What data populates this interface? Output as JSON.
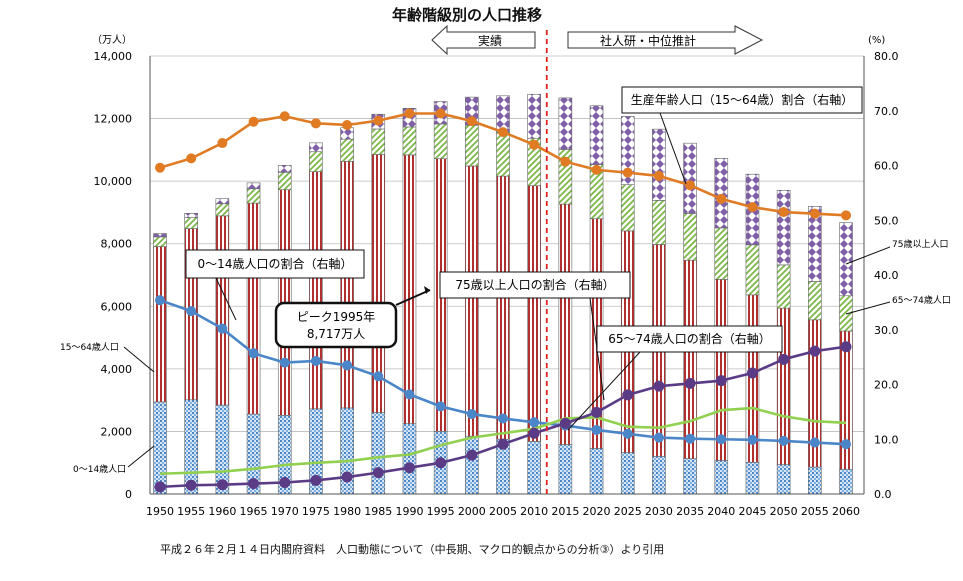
{
  "chart_data": {
    "type": "bar",
    "title": "年齢階級別の人口推移",
    "left_unit": "（万人）",
    "right_unit": "(%)",
    "left_axis": {
      "min": 0,
      "max": 14000,
      "ticks": [
        "0",
        "2,000",
        "4,000",
        "6,000",
        "8,000",
        "10,000",
        "12,000",
        "14,000"
      ]
    },
    "right_axis": {
      "min": 0,
      "max": 80,
      "ticks": [
        "0.0",
        "10.0",
        "20.0",
        "30.0",
        "40.0",
        "50.0",
        "60.0",
        "70.0",
        "80.0"
      ]
    },
    "categories": [
      "1950",
      "1955",
      "1960",
      "1965",
      "1970",
      "1975",
      "1980",
      "1985",
      "1990",
      "1995",
      "2000",
      "2005",
      "2010",
      "2015",
      "2020",
      "2025",
      "2030",
      "2035",
      "2040",
      "2045",
      "2050",
      "2055",
      "2060"
    ],
    "bar_series": [
      {
        "name": "0〜14歳人口",
        "color": "#4a86c8",
        "values": [
          2943,
          3012,
          2843,
          2553,
          2515,
          2722,
          2751,
          2603,
          2249,
          2001,
          1847,
          1752,
          1680,
          1583,
          1457,
          1324,
          1204,
          1129,
          1073,
          1012,
          939,
          861,
          791
        ]
      },
      {
        "name": "15〜64歳人口",
        "color": "#b03030",
        "values": [
          4966,
          5473,
          6047,
          6744,
          7212,
          7581,
          7883,
          8251,
          8590,
          8717,
          8638,
          8409,
          8173,
          7682,
          7341,
          7085,
          6773,
          6343,
          5787,
          5353,
          5001,
          4706,
          4418
        ]
      },
      {
        "name": "65〜74歳人口",
        "color": "#7ab648",
        "values": [
          309,
          347,
          387,
          459,
          555,
          637,
          707,
          814,
          893,
          1109,
          1301,
          1407,
          1517,
          1749,
          1733,
          1479,
          1407,
          1497,
          1645,
          1600,
          1383,
          1225,
          1128
        ]
      },
      {
        "name": "75歳以上人口",
        "color": "#7f5fa8",
        "values": [
          107,
          139,
          163,
          189,
          224,
          284,
          366,
          471,
          597,
          717,
          900,
          1160,
          1407,
          1646,
          1879,
          2179,
          2278,
          2245,
          2223,
          2257,
          2385,
          2401,
          2336
        ]
      }
    ],
    "line_series": [
      {
        "name": "生産年齢人口（15〜64歳）割合（右軸）",
        "color": "#e07b24",
        "values": [
          59.6,
          61.3,
          64.1,
          68.0,
          69.0,
          67.7,
          67.4,
          68.2,
          69.5,
          69.5,
          68.1,
          66.1,
          63.8,
          60.7,
          59.2,
          58.7,
          58.1,
          56.4,
          53.9,
          52.4,
          51.5,
          51.2,
          50.9
        ]
      },
      {
        "name": "0〜14歳人口の割合（右軸）",
        "color": "#4a86c8",
        "values": [
          35.4,
          33.4,
          30.2,
          25.7,
          24.0,
          24.3,
          23.5,
          21.5,
          18.2,
          16.0,
          14.6,
          13.8,
          13.1,
          12.5,
          11.7,
          11.0,
          10.3,
          10.1,
          10.0,
          9.9,
          9.7,
          9.4,
          9.1
        ]
      },
      {
        "name": "65〜74歳人口の割合（右軸）",
        "color": "#92d050",
        "values": [
          3.7,
          3.9,
          4.1,
          4.6,
          5.3,
          5.7,
          6.0,
          6.7,
          7.2,
          8.9,
          10.3,
          11.1,
          11.9,
          13.8,
          14.0,
          12.3,
          12.1,
          13.3,
          15.3,
          15.7,
          14.2,
          13.3,
          13.0
        ]
      },
      {
        "name": "75歳以上人口の割合（右軸）",
        "color": "#5b3b86",
        "values": [
          1.3,
          1.6,
          1.7,
          1.9,
          2.1,
          2.5,
          3.1,
          3.9,
          4.8,
          5.7,
          7.1,
          9.1,
          11.1,
          12.9,
          14.9,
          18.1,
          19.7,
          20.2,
          20.7,
          22.1,
          24.6,
          26.1,
          26.9
        ]
      }
    ],
    "divider_after": "2010",
    "actual_label": "実績",
    "projection_label": "社人研・中位推計",
    "callouts": {
      "working_ratio": "生産年齢人口（15〜64歳）割合（右軸）",
      "young_ratio": "0〜14歳人口の割合（右軸）",
      "over75_ratio": "75歳以上人口の割合（右軸）",
      "ratio_6574": "65〜74歳人口の割合（右軸）",
      "peak_line1": "ピーク1995年",
      "peak_line2": "8,717万人"
    },
    "side_labels": {
      "p1564": "15〜64歳人口",
      "p014": "0〜14歳人口",
      "p75": "75歳以上人口",
      "p6574": "65〜74歳人口"
    },
    "source_note": "平成２６年２月１４日内閣府資料　人口動態について（中長期、マクロ的観点からの分析③）より引用"
  }
}
